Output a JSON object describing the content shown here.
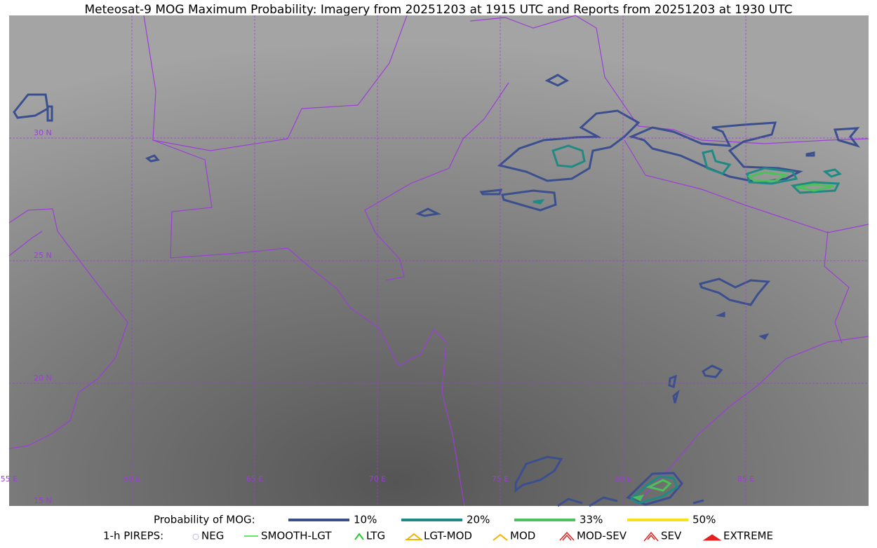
{
  "title": "Meteosat-9 MOG Maximum Probability: Imagery from 20251203 at 1915 UTC and Reports from 20251203 at 1930 UTC",
  "map": {
    "lat_labels": [
      "30 N",
      "25 N",
      "20 N",
      "15 N"
    ],
    "lon_labels": [
      "55 E",
      "60 E",
      "65 E",
      "70 E",
      "75 E",
      "80 E",
      "85 E"
    ]
  },
  "legend": {
    "probability_label": "Probability of MOG:",
    "levels": [
      {
        "label": "10%",
        "color": "#3b4f8f"
      },
      {
        "label": "20%",
        "color": "#1f8a84"
      },
      {
        "label": "33%",
        "color": "#4cc05a"
      },
      {
        "label": "50%",
        "color": "#f5e21a"
      }
    ],
    "pireps_label": "1-h PIREPS:",
    "pireps": [
      {
        "label": "NEG",
        "color": "#b8b8f0"
      },
      {
        "label": "SMOOTH-LGT",
        "color": "#33dd33"
      },
      {
        "label": "LTG",
        "color": "#22cc22"
      },
      {
        "label": "LGT-MOD",
        "color": "#f5b400"
      },
      {
        "label": "MOD",
        "color": "#f5b400"
      },
      {
        "label": "MOD-SEV",
        "color": "#e52020"
      },
      {
        "label": "SEV",
        "color": "#e52020"
      },
      {
        "label": "EXTREME",
        "color": "#e52020"
      }
    ]
  }
}
